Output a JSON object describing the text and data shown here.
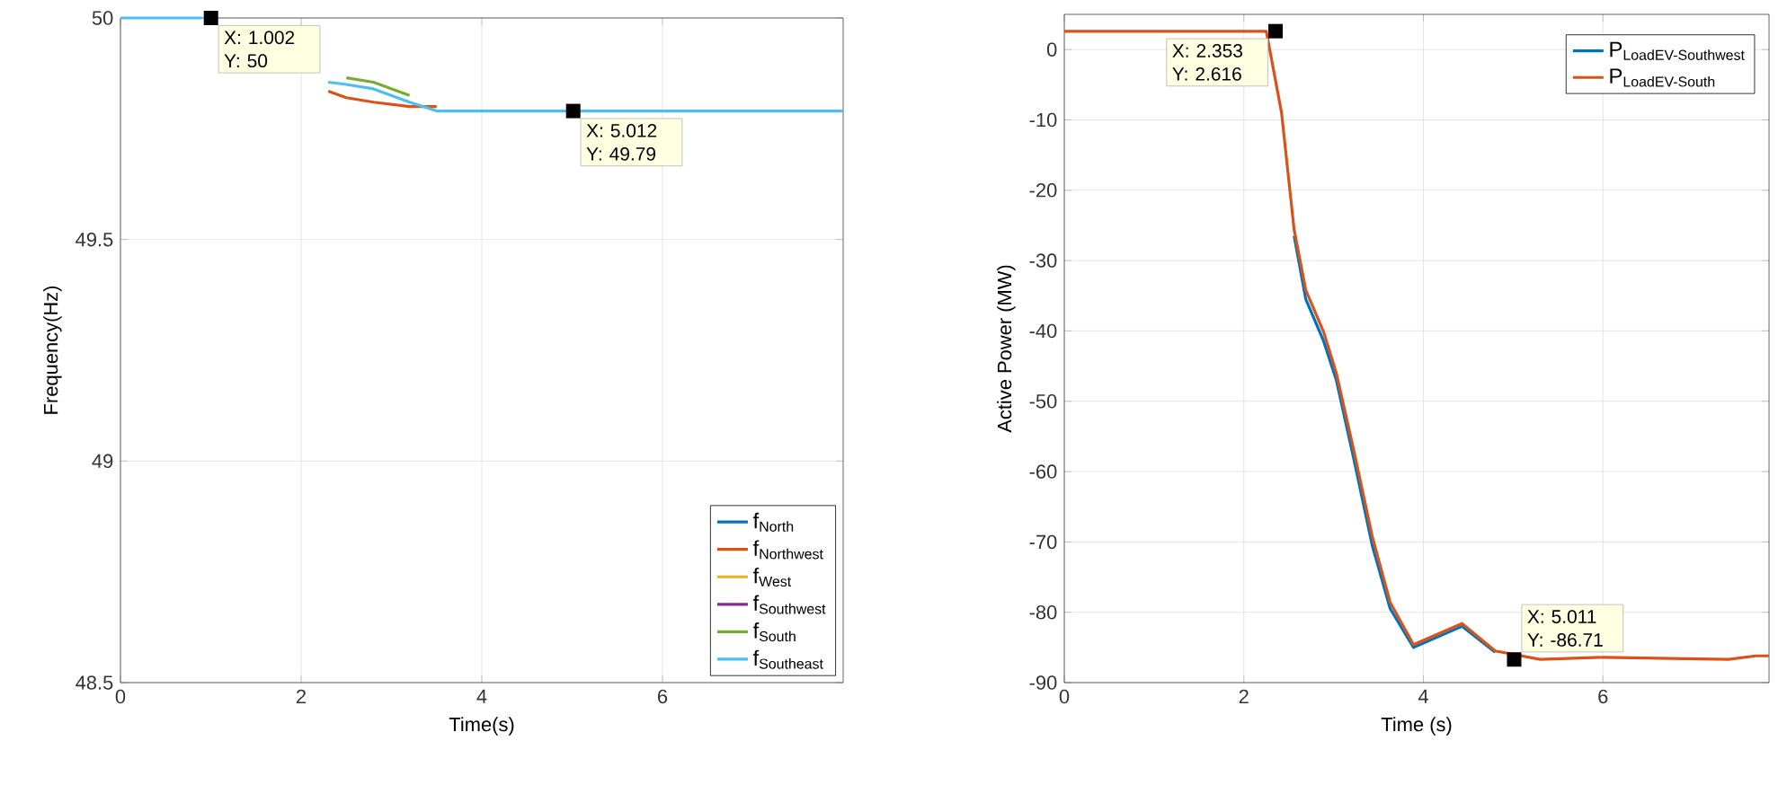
{
  "chart_data": [
    {
      "type": "line",
      "xlabel": "Time(s)",
      "ylabel": "Frequency(Hz)",
      "xlim": [
        0,
        8
      ],
      "ylim": [
        48.5,
        50
      ],
      "xticks": [
        0,
        2,
        4,
        6
      ],
      "yticks": [
        48.5,
        49,
        49.5,
        50
      ],
      "grid": true,
      "legend": "bottom right",
      "marker": "none",
      "line_style": "solid",
      "x": [
        0,
        0.9,
        1.5,
        2.3,
        2.5,
        2.8,
        3.2,
        3.5,
        4,
        4.5,
        5.5,
        6.5,
        8
      ],
      "series": [
        {
          "name": "\\text{f}_{\\text{North}}",
          "color": "#0072bd",
          "values": [
            null,
            null,
            null,
            null,
            null,
            null,
            null,
            null,
            null,
            null,
            null,
            null,
            null
          ]
        },
        {
          "name": "\\text{f}_{\\text{Northwest}}",
          "color": "#d95319",
          "values": [
            null,
            null,
            null,
            49.835,
            49.82,
            49.81,
            49.8,
            49.8,
            null,
            null,
            null,
            null,
            null
          ]
        },
        {
          "name": "\\text{f}_{\\text{West}}",
          "color": "#edb120",
          "values": [
            null,
            null,
            null,
            null,
            null,
            null,
            null,
            null,
            null,
            null,
            null,
            null,
            null
          ]
        },
        {
          "name": "\\text{f}_{\\text{Southwest}}",
          "color": "#7e2f8e",
          "values": [
            null,
            null,
            null,
            null,
            null,
            null,
            null,
            null,
            null,
            null,
            null,
            null,
            null
          ]
        },
        {
          "name": "\\text{f}_{\\text{South}}",
          "color": "#77ac30",
          "values": [
            null,
            null,
            null,
            null,
            49.865,
            49.855,
            49.825,
            null,
            null,
            null,
            null,
            null,
            null
          ]
        },
        {
          "name": "\\text{f}_{\\text{Southeast}}",
          "color": "#4dbeee",
          "values": [
            50,
            50,
            null,
            49.855,
            49.85,
            49.84,
            49.81,
            49.79,
            49.79,
            49.79,
            49.79,
            49.79,
            49.79
          ]
        }
      ],
      "annotations": [
        {
          "text": "X: 1.002 Y: 50",
          "x": 1.002,
          "y": 50
        },
        {
          "text": "X: 5.012 Y: 49.79",
          "x": 5.012,
          "y": 49.79
        }
      ]
    },
    {
      "type": "line",
      "xlabel": "Time (s)",
      "ylabel": "Active Power (MW)",
      "xlim": [
        0,
        7.85
      ],
      "ylim": [
        -90,
        5
      ],
      "xticks": [
        0,
        2,
        4,
        6
      ],
      "yticks": [
        -90,
        -80,
        -70,
        -60,
        -50,
        -40,
        -30,
        -20,
        -10,
        0
      ],
      "grid": true,
      "legend": "top right",
      "marker": "none",
      "line_style": "solid",
      "x": [
        0,
        2.25,
        2.42,
        2.56,
        2.69,
        2.89,
        3.03,
        3.23,
        3.43,
        3.63,
        3.89,
        4.43,
        4.8,
        5.3,
        6,
        7.4,
        7.7,
        7.85
      ],
      "series": [
        {
          "name": "\\text{P}_{\\text{LoadEV-Southwest}}",
          "color": "#0072bd",
          "values": [
            null,
            null,
            null,
            -26.5,
            -35.5,
            -41.5,
            -47,
            -58.5,
            -70.5,
            -79.5,
            -85,
            -82,
            -85.7,
            null,
            null,
            null,
            null,
            null
          ]
        },
        {
          "name": "\\text{P}_{\\text{LoadEV-South}}",
          "color": "#d95319",
          "values": [
            2.6,
            2.6,
            -9,
            -25.6,
            -34.2,
            -40.2,
            -46,
            -57.3,
            -69.2,
            -78.6,
            -84.6,
            -81.6,
            -85.5,
            -86.7,
            -86.4,
            -86.7,
            -86.2,
            -86.2
          ]
        }
      ],
      "annotations": [
        {
          "text": "X: 2.353 Y: 2.616",
          "x": 2.353,
          "y": 2.616
        },
        {
          "text": "X: 5.011 Y: -86.71",
          "x": 5.011,
          "y": -86.71
        }
      ]
    }
  ]
}
